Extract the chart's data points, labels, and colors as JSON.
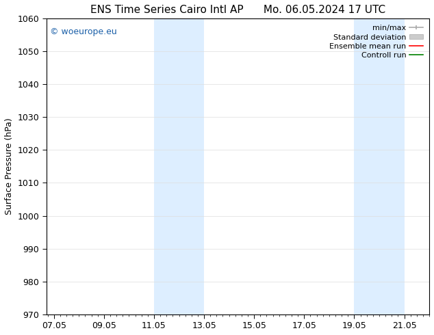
{
  "title_left": "ENS Time Series Cairo Intl AP",
  "title_right": "Mo. 06.05.2024 17 UTC",
  "ylabel": "Surface Pressure (hPa)",
  "ylim": [
    970,
    1060
  ],
  "yticks": [
    970,
    980,
    990,
    1000,
    1010,
    1020,
    1030,
    1040,
    1050,
    1060
  ],
  "xtick_labels": [
    "07.05",
    "09.05",
    "11.05",
    "13.05",
    "15.05",
    "17.05",
    "19.05",
    "21.05"
  ],
  "xtick_positions": [
    0,
    2,
    4,
    6,
    8,
    10,
    12,
    14
  ],
  "xlim": [
    -0.3,
    15.0
  ],
  "shaded_bands": [
    {
      "x_start": 4,
      "x_end": 6,
      "color": "#ddeeff"
    },
    {
      "x_start": 12,
      "x_end": 14,
      "color": "#ddeeff"
    }
  ],
  "watermark_text": "© woeurope.eu",
  "watermark_color": "#1a5fa8",
  "legend_entries": [
    {
      "label": "min/max",
      "color": "#aaaaaa"
    },
    {
      "label": "Standard deviation",
      "color": "#cccccc"
    },
    {
      "label": "Ensemble mean run",
      "color": "red"
    },
    {
      "label": "Controll run",
      "color": "green"
    }
  ],
  "bg_color": "#ffffff",
  "title_fontsize": 11,
  "axis_label_fontsize": 9,
  "tick_fontsize": 9,
  "legend_fontsize": 8
}
